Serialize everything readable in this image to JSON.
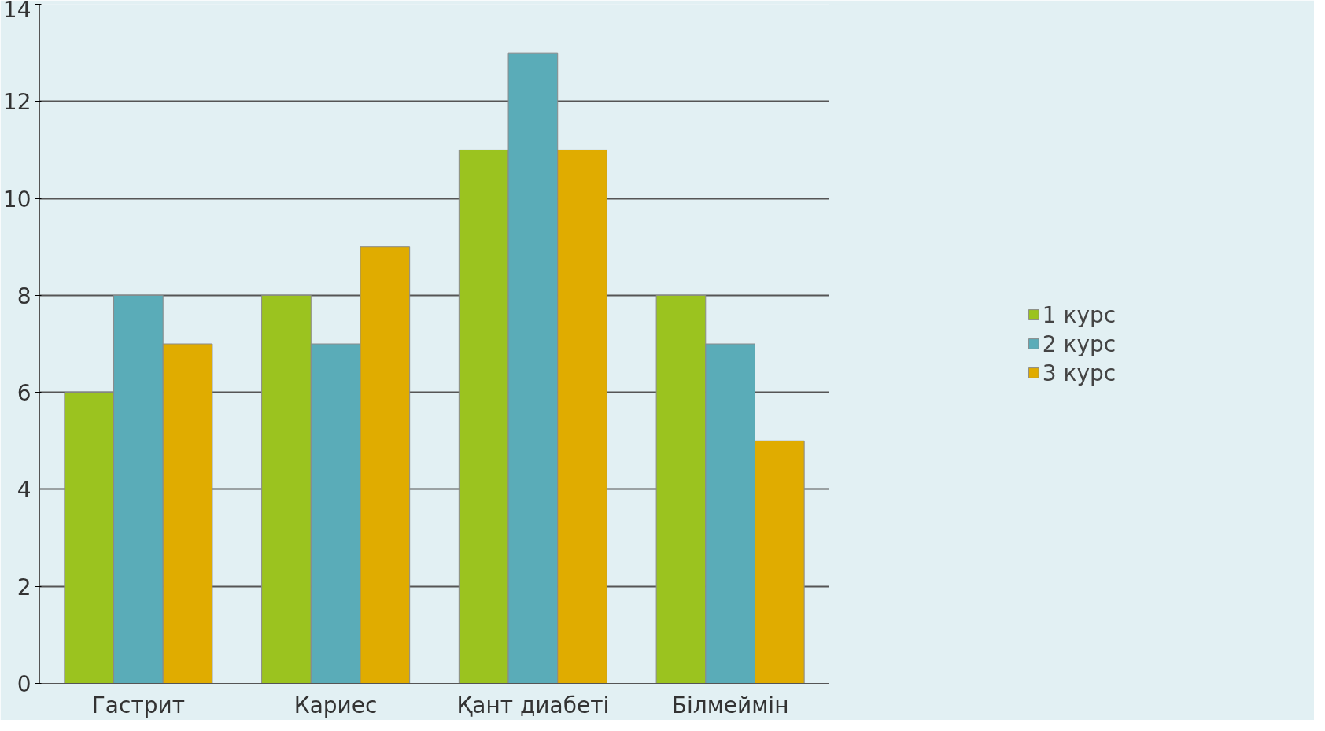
{
  "chart_data": {
    "type": "bar",
    "categories": [
      "Гастрит",
      "Кариес",
      "Қант диабеті",
      "Білмеймін"
    ],
    "series": [
      {
        "name": "1 курс",
        "color": "#9bc31f",
        "values": [
          6,
          8,
          11,
          8
        ]
      },
      {
        "name": "2 курс",
        "color": "#5aacb8",
        "values": [
          8,
          7,
          13,
          7
        ]
      },
      {
        "name": "3 курс",
        "color": "#e0ac00",
        "values": [
          7,
          9,
          11,
          5
        ]
      }
    ],
    "ylim": [
      0,
      14
    ],
    "yticks": [
      0,
      2,
      4,
      6,
      8,
      10,
      12,
      14
    ],
    "grid": "y",
    "legend": "right"
  }
}
